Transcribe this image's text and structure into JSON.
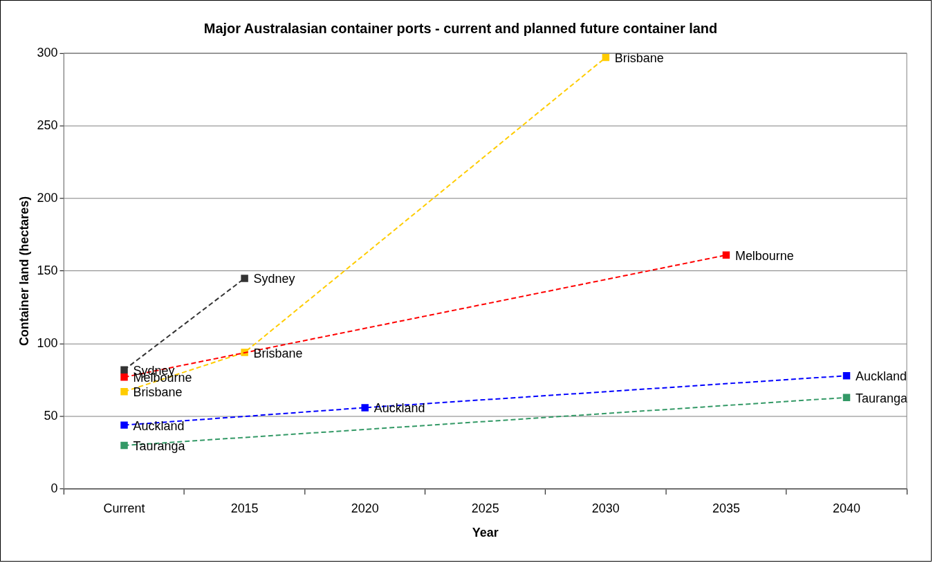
{
  "chart_data": {
    "type": "line",
    "title": "Major Australasian container ports - current and planned future container land",
    "xlabel": "Year",
    "ylabel": "Container land (hectares)",
    "categories": [
      "Current",
      "2015",
      "2020",
      "2025",
      "2030",
      "2035",
      "2040"
    ],
    "series": [
      {
        "name": "Sydney",
        "color": "#333333",
        "values": [
          82,
          145,
          null,
          null,
          null,
          null,
          null
        ]
      },
      {
        "name": "Melbourne",
        "color": "#ff0000",
        "values": [
          77,
          null,
          null,
          null,
          null,
          161,
          null
        ]
      },
      {
        "name": "Brisbane",
        "color": "#ffcc00",
        "values": [
          67,
          94,
          null,
          null,
          297,
          null,
          null
        ]
      },
      {
        "name": "Auckland",
        "color": "#0000ff",
        "values": [
          44,
          null,
          56,
          null,
          null,
          null,
          78
        ]
      },
      {
        "name": "Tauranga",
        "color": "#339966",
        "values": [
          30,
          null,
          null,
          null,
          null,
          null,
          63
        ]
      }
    ],
    "ylim": [
      0,
      300
    ],
    "yticks": [
      0,
      50,
      100,
      150,
      200,
      250,
      300
    ],
    "grid": "y",
    "legend": false,
    "marker": "square",
    "line_style": "dashed"
  }
}
